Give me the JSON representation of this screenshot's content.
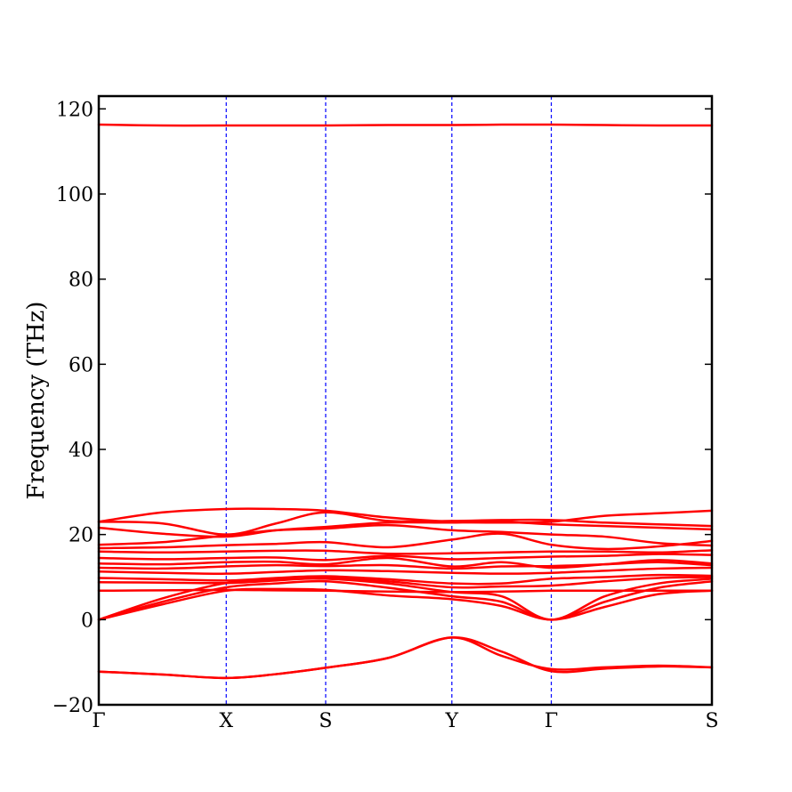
{
  "chart_data": {
    "type": "line",
    "title": "",
    "xlabel": "",
    "ylabel": "Frequency (THz)",
    "ylim": [
      -20,
      123
    ],
    "yticks": [
      -20,
      0,
      20,
      40,
      60,
      80,
      100,
      120
    ],
    "ytick_labels": [
      "−20",
      "0",
      "20",
      "40",
      "60",
      "80",
      "100",
      "120"
    ],
    "path_points": [
      {
        "label": "Γ",
        "x": 0
      },
      {
        "label": "X",
        "x": 1.0
      },
      {
        "label": "S",
        "x": 1.78
      },
      {
        "label": "Y",
        "x": 2.77
      },
      {
        "label": "Γ",
        "x": 3.55
      },
      {
        "label": "S",
        "x": 4.81
      }
    ],
    "xlim": [
      0,
      4.81
    ],
    "grid": false,
    "legend": "none",
    "colors": {
      "bands": "#ff0000",
      "high_symmetry_lines": "#0000ff",
      "axes": "#000000"
    },
    "series": [
      {
        "x": [
          0,
          0.5,
          1.0,
          1.39,
          1.78,
          2.27,
          2.77,
          3.16,
          3.55,
          3.97,
          4.39,
          4.81
        ],
        "values": [
          116.3,
          116.1,
          116.1,
          116.1,
          116.1,
          116.2,
          116.2,
          116.3,
          116.3,
          116.2,
          116.1,
          116.1
        ]
      },
      {
        "x": [
          0,
          0.5,
          1.0,
          1.39,
          1.78,
          2.27,
          2.77,
          3.16,
          3.55,
          3.97,
          4.39,
          4.81
        ],
        "values": [
          -12.2,
          -12.9,
          -13.7,
          -12.8,
          -11.3,
          -9.0,
          -4.2,
          -8.5,
          -11.6,
          -11.2,
          -10.8,
          -11.2
        ]
      },
      {
        "x": [
          0,
          0.5,
          1.0,
          1.39,
          1.78,
          2.27,
          2.77,
          3.16,
          3.55,
          3.97,
          4.39,
          4.81
        ],
        "values": [
          -12.2,
          -12.9,
          -13.7,
          -12.8,
          -11.3,
          -9.0,
          -4.2,
          -7.5,
          -12.1,
          -11.5,
          -11.0,
          -11.2
        ]
      },
      {
        "x": [
          0,
          0.5,
          1.0,
          1.39,
          1.78,
          2.27,
          2.77,
          3.16,
          3.55,
          3.97,
          4.39,
          4.81
        ],
        "values": [
          0.0,
          3.6,
          6.8,
          7.2,
          7.0,
          5.7,
          4.8,
          3.2,
          0.0,
          3.0,
          6.0,
          6.8
        ]
      },
      {
        "x": [
          0,
          0.5,
          1.0,
          1.39,
          1.78,
          2.27,
          2.77,
          3.16,
          3.55,
          3.97,
          4.39,
          4.81
        ],
        "values": [
          0.0,
          4.2,
          7.6,
          8.5,
          9.0,
          7.5,
          5.5,
          4.2,
          0.0,
          4.2,
          7.5,
          9.0
        ]
      },
      {
        "x": [
          0,
          0.5,
          1.0,
          1.39,
          1.78,
          2.27,
          2.77,
          3.16,
          3.55,
          3.97,
          4.39,
          4.81
        ],
        "values": [
          0.0,
          5.0,
          8.6,
          9.4,
          9.6,
          8.5,
          6.5,
          5.5,
          0.0,
          5.5,
          8.5,
          9.6
        ]
      },
      {
        "x": [
          0,
          0.5,
          1.0,
          1.39,
          1.78,
          2.27,
          2.77,
          3.16,
          3.55,
          3.97,
          4.39,
          4.81
        ],
        "values": [
          6.8,
          6.9,
          7.0,
          6.9,
          6.8,
          6.6,
          6.5,
          6.6,
          6.8,
          6.8,
          6.8,
          6.8
        ]
      },
      {
        "x": [
          0,
          0.5,
          1.0,
          1.39,
          1.78,
          2.27,
          2.77,
          3.16,
          3.55,
          3.97,
          4.39,
          4.81
        ],
        "values": [
          8.8,
          8.7,
          8.6,
          9.2,
          9.8,
          9.0,
          7.6,
          7.8,
          8.0,
          9.0,
          9.8,
          10.0
        ]
      },
      {
        "x": [
          0,
          0.5,
          1.0,
          1.39,
          1.78,
          2.27,
          2.77,
          3.16,
          3.55,
          3.97,
          4.39,
          4.81
        ],
        "values": [
          9.8,
          9.5,
          9.2,
          9.8,
          10.2,
          9.5,
          8.5,
          8.5,
          9.6,
          10.0,
          10.5,
          10.3
        ]
      },
      {
        "x": [
          0,
          0.5,
          1.0,
          1.39,
          1.78,
          2.27,
          2.77,
          3.16,
          3.55,
          3.97,
          4.39,
          4.81
        ],
        "values": [
          11.3,
          11.0,
          10.8,
          11.2,
          11.6,
          11.4,
          11.0,
          10.8,
          11.0,
          11.5,
          12.0,
          12.2
        ]
      },
      {
        "x": [
          0,
          0.5,
          1.0,
          1.39,
          1.78,
          2.27,
          2.77,
          3.16,
          3.55,
          3.97,
          4.39,
          4.81
        ],
        "values": [
          12.2,
          12.0,
          12.5,
          12.8,
          12.6,
          12.8,
          12.0,
          12.5,
          12.6,
          13.0,
          13.5,
          12.8
        ]
      },
      {
        "x": [
          0,
          0.5,
          1.0,
          1.39,
          1.78,
          2.27,
          2.77,
          3.16,
          3.55,
          3.97,
          4.39,
          4.81
        ],
        "values": [
          13.2,
          13.0,
          13.5,
          13.6,
          13.0,
          14.5,
          12.5,
          13.5,
          12.2,
          13.0,
          14.0,
          13.2
        ]
      },
      {
        "x": [
          0,
          0.5,
          1.0,
          1.39,
          1.78,
          2.27,
          2.77,
          3.16,
          3.55,
          3.97,
          4.39,
          4.81
        ],
        "values": [
          14.5,
          14.2,
          14.5,
          14.6,
          14.0,
          15.0,
          14.2,
          14.5,
          14.8,
          15.0,
          15.4,
          15.2
        ]
      },
      {
        "x": [
          0,
          0.5,
          1.0,
          1.39,
          1.78,
          2.27,
          2.77,
          3.16,
          3.55,
          3.97,
          4.39,
          4.81
        ],
        "values": [
          16.0,
          15.8,
          16.0,
          16.2,
          16.2,
          15.5,
          15.6,
          15.8,
          16.0,
          16.0,
          15.8,
          16.3
        ]
      },
      {
        "x": [
          0,
          0.5,
          1.0,
          1.39,
          1.78,
          2.27,
          2.77,
          3.16,
          3.55,
          3.97,
          4.39,
          4.81
        ],
        "values": [
          16.8,
          17.0,
          17.5,
          17.8,
          18.2,
          17.0,
          18.8,
          20.2,
          17.6,
          16.6,
          17.2,
          18.5
        ]
      },
      {
        "x": [
          0,
          0.5,
          1.0,
          1.39,
          1.78,
          2.27,
          2.77,
          3.16,
          3.55,
          3.97,
          4.39,
          4.81
        ],
        "values": [
          17.6,
          18.2,
          19.8,
          21.0,
          21.4,
          22.2,
          21.0,
          20.6,
          20.0,
          19.5,
          18.0,
          17.4
        ]
      },
      {
        "x": [
          0,
          0.5,
          1.0,
          1.39,
          1.78,
          2.27,
          2.77,
          3.16,
          3.55,
          3.97,
          4.39,
          4.81
        ],
        "values": [
          21.6,
          20.2,
          19.5,
          21.0,
          21.8,
          22.8,
          22.8,
          23.0,
          22.4,
          22.0,
          21.6,
          21.2
        ]
      },
      {
        "x": [
          0,
          0.5,
          1.0,
          1.39,
          1.78,
          2.27,
          2.77,
          3.16,
          3.55,
          3.97,
          4.39,
          4.81
        ],
        "values": [
          23.0,
          22.6,
          20.0,
          22.6,
          25.2,
          23.2,
          23.2,
          23.4,
          23.4,
          22.8,
          22.4,
          22.0
        ]
      },
      {
        "x": [
          0,
          0.5,
          1.0,
          1.39,
          1.78,
          2.27,
          2.77,
          3.16,
          3.55,
          3.97,
          4.39,
          4.81
        ],
        "values": [
          23.0,
          25.2,
          26.0,
          26.0,
          25.6,
          24.0,
          23.0,
          22.8,
          23.0,
          24.4,
          25.0,
          25.6
        ]
      }
    ]
  }
}
